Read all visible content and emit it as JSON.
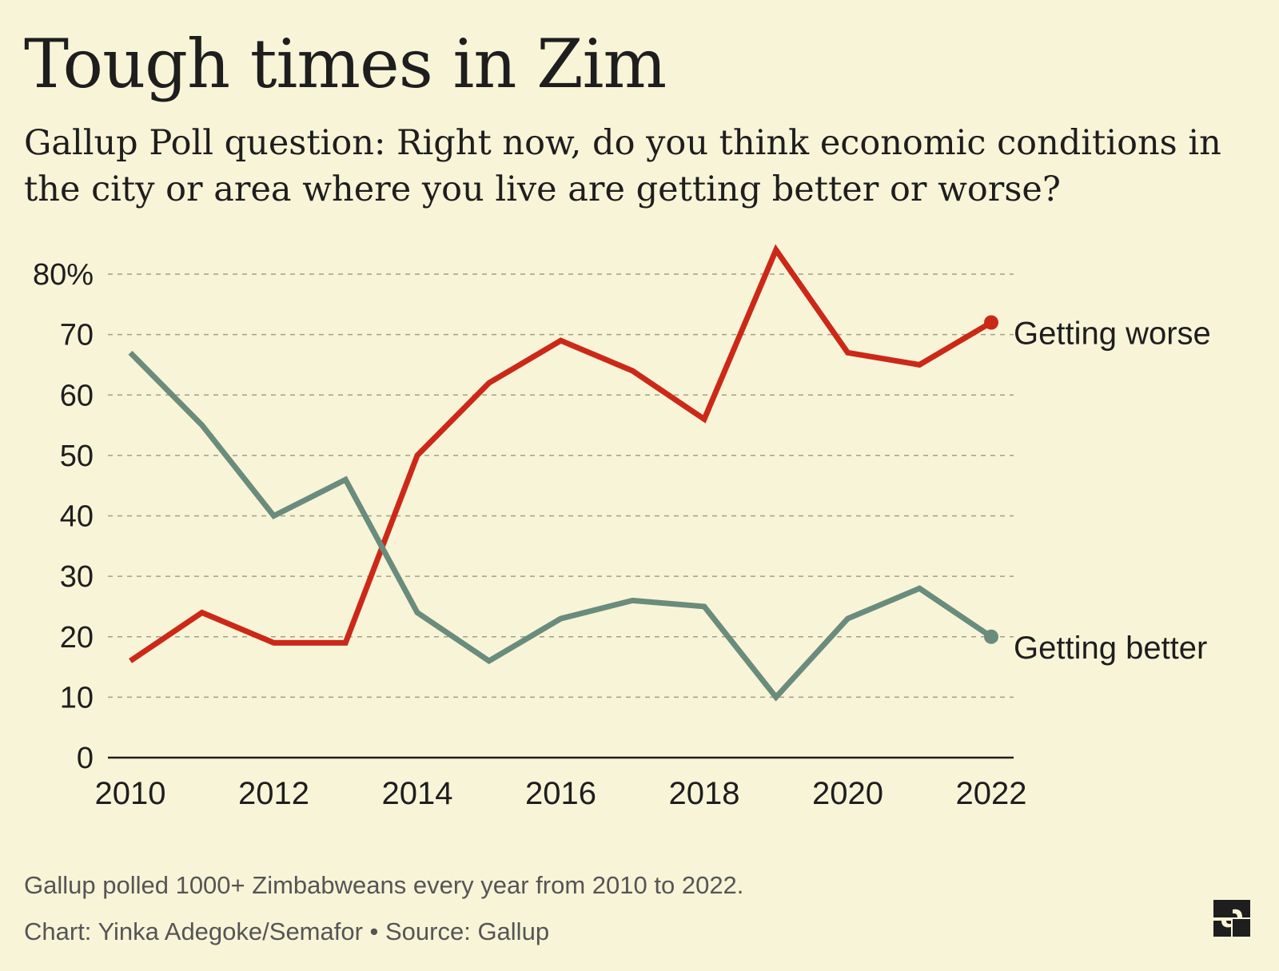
{
  "header": {
    "title": "Tough times in Zim",
    "subtitle": "Gallup Poll question: Right now, do you think economic conditions in the city or area where you live are getting better or worse?"
  },
  "footer": {
    "note": "Gallup polled 1000+ Zimbabweans every year from 2010 to 2022.",
    "credit": "Chart: Yinka Adegoke/Semafor • Source: Gallup"
  },
  "colors": {
    "background": "#f8f4d8",
    "worse": "#cc2818",
    "better": "#6a8c7c"
  },
  "logo_icon": "semafor-logo-icon",
  "chart_data": {
    "type": "line",
    "x": [
      2010,
      2011,
      2012,
      2013,
      2014,
      2015,
      2016,
      2017,
      2018,
      2019,
      2020,
      2021,
      2022
    ],
    "x_tick_labels": [
      "2010",
      "2012",
      "2014",
      "2016",
      "2018",
      "2020",
      "2022"
    ],
    "y_tick_labels": [
      "0",
      "10",
      "20",
      "30",
      "40",
      "50",
      "60",
      "70",
      "80%"
    ],
    "ylim": [
      0,
      80
    ],
    "xlim": [
      2010,
      2022
    ],
    "grid": true,
    "legend": "inline labels at line ends",
    "series": [
      {
        "name": "Getting worse",
        "color": "#cc2818",
        "values": [
          16,
          24,
          19,
          19,
          50,
          62,
          69,
          64,
          56,
          84,
          67,
          65,
          72
        ]
      },
      {
        "name": "Getting better",
        "color": "#6a8c7c",
        "values": [
          67,
          55,
          40,
          46,
          24,
          16,
          23,
          26,
          25,
          10,
          23,
          28,
          20
        ]
      }
    ]
  }
}
